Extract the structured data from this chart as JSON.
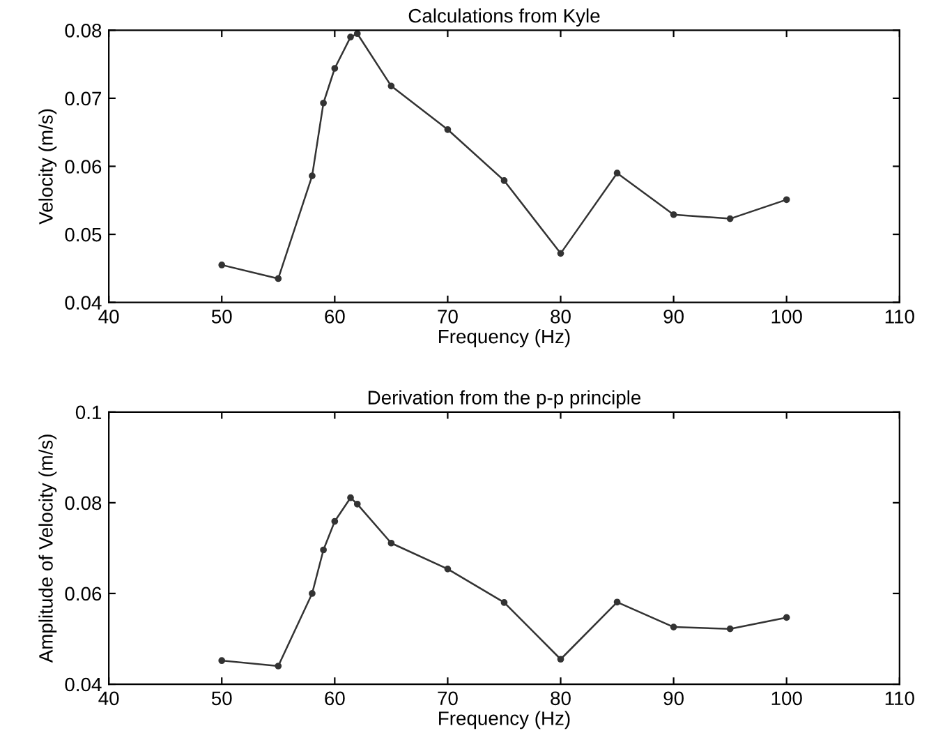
{
  "chart_data": [
    {
      "type": "line",
      "title": "Calculations from Kyle",
      "xlabel": "Frequency (Hz)",
      "ylabel": "Velocity (m/s)",
      "marker": "circle",
      "line_style": "solid",
      "grid": false,
      "legend": false,
      "xlim": [
        40,
        110
      ],
      "xticks": [
        40,
        50,
        60,
        70,
        80,
        90,
        100,
        110
      ],
      "ylim": [
        0.04,
        0.08
      ],
      "yticks": [
        0.04,
        0.05,
        0.06,
        0.07,
        0.08
      ],
      "series": [
        {
          "color": "#333333",
          "x": [
            50,
            55,
            58,
            59,
            60,
            61.4,
            62,
            65,
            70,
            75,
            80,
            85,
            90,
            95,
            100
          ],
          "values": [
            0.0455,
            0.0435,
            0.0586,
            0.0693,
            0.0744,
            0.079,
            0.0795,
            0.0718,
            0.0654,
            0.0579,
            0.0472,
            0.059,
            0.0529,
            0.0523,
            0.0551
          ]
        }
      ]
    },
    {
      "type": "line",
      "title": "Derivation from the p-p principle",
      "xlabel": "Frequency (Hz)",
      "ylabel": "Amplitude of Velocity (m/s)",
      "marker": "circle",
      "line_style": "solid",
      "grid": false,
      "legend": false,
      "xlim": [
        40,
        110
      ],
      "xticks": [
        40,
        50,
        60,
        70,
        80,
        90,
        100,
        110
      ],
      "ylim": [
        0.04,
        0.1
      ],
      "yticks": [
        0.04,
        0.06,
        0.08,
        0.1
      ],
      "series": [
        {
          "color": "#333333",
          "x": [
            50,
            55,
            58,
            59,
            60,
            61.4,
            62,
            65,
            70,
            75,
            80,
            85,
            90,
            95,
            100
          ],
          "values": [
            0.0452,
            0.044,
            0.06,
            0.0696,
            0.0759,
            0.0811,
            0.0797,
            0.0711,
            0.0654,
            0.058,
            0.0455,
            0.0581,
            0.0526,
            0.0522,
            0.0547
          ]
        }
      ]
    }
  ]
}
